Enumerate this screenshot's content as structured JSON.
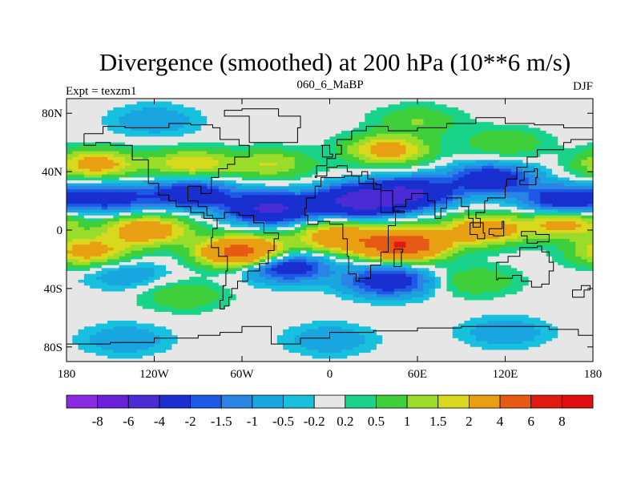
{
  "chart_data": {
    "type": "heatmap",
    "title": "Divergence (smoothed) at 200 hPa (10**6 m/s)",
    "left_label": "Expt = texzm1",
    "center_label": "060_6_MaBP",
    "right_label": "DJF",
    "x_ticks": [
      "180",
      "120W",
      "60W",
      "0",
      "60E",
      "120E",
      "180"
    ],
    "x_tick_values": [
      -180,
      -120,
      -60,
      0,
      60,
      120,
      180
    ],
    "y_ticks": [
      "80N",
      "40N",
      "0",
      "40S",
      "80S"
    ],
    "y_tick_values": [
      80,
      40,
      0,
      -40,
      -80
    ],
    "xlim": [
      -180,
      180
    ],
    "ylim": [
      -90,
      90
    ],
    "colorbar_labels": [
      "-8",
      "-6",
      "-4",
      "-2",
      "-1.5",
      "-1",
      "-0.5",
      "-0.2",
      "0.2",
      "0.5",
      "1",
      "1.5",
      "2",
      "4",
      "6",
      "8"
    ],
    "colorbar_levels": [
      -8,
      -6,
      -4,
      -2,
      -1.5,
      -1,
      -0.5,
      -0.2,
      0.2,
      0.5,
      1,
      1.5,
      2,
      4,
      6,
      8
    ],
    "colorbar_colors": [
      "#8a2be2",
      "#6a1fd8",
      "#4b2bd6",
      "#1a2fd0",
      "#1c5ae6",
      "#2a84e6",
      "#19a5e0",
      "#17c1de",
      "#e6e6e6",
      "#19d38a",
      "#3fcf3a",
      "#9adc2a",
      "#d8d81c",
      "#e8a012",
      "#e65a14",
      "#e01a10",
      "#e00e0e"
    ],
    "contour_features": [
      {
        "lon": -150,
        "lat": 22,
        "value": -2.5
      },
      {
        "lon": -95,
        "lat": 25,
        "value": -3
      },
      {
        "lon": -40,
        "lat": 15,
        "value": -4.5
      },
      {
        "lon": 20,
        "lat": 20,
        "value": -5
      },
      {
        "lon": 55,
        "lat": 25,
        "value": -4
      },
      {
        "lon": 110,
        "lat": 35,
        "value": -3
      },
      {
        "lon": 160,
        "lat": 20,
        "value": -3
      },
      {
        "lon": -160,
        "lat": 45,
        "value": 2.5
      },
      {
        "lon": -95,
        "lat": 45,
        "value": 2
      },
      {
        "lon": -40,
        "lat": 45,
        "value": 1.5
      },
      {
        "lon": 40,
        "lat": 55,
        "value": 2.5
      },
      {
        "lon": 120,
        "lat": 60,
        "value": 1
      },
      {
        "lon": -165,
        "lat": -15,
        "value": 2.5
      },
      {
        "lon": -125,
        "lat": 0,
        "value": 3
      },
      {
        "lon": -60,
        "lat": -15,
        "value": 5
      },
      {
        "lon": 5,
        "lat": -5,
        "value": 3
      },
      {
        "lon": 50,
        "lat": -10,
        "value": 6
      },
      {
        "lon": 105,
        "lat": 0,
        "value": 3
      },
      {
        "lon": 160,
        "lat": 5,
        "value": 2.5
      },
      {
        "lon": -140,
        "lat": -30,
        "value": -1
      },
      {
        "lon": -30,
        "lat": -25,
        "value": -3
      },
      {
        "lon": 40,
        "lat": -35,
        "value": -3
      },
      {
        "lon": -140,
        "lat": -75,
        "value": -1
      },
      {
        "lon": 0,
        "lat": -75,
        "value": -1
      },
      {
        "lon": 120,
        "lat": -70,
        "value": -1
      },
      {
        "lon": 100,
        "lat": -35,
        "value": 1
      },
      {
        "lon": -100,
        "lat": -45,
        "value": 1
      },
      {
        "lon": -120,
        "lat": 75,
        "value": -1
      },
      {
        "lon": 60,
        "lat": 75,
        "value": 1
      }
    ]
  }
}
